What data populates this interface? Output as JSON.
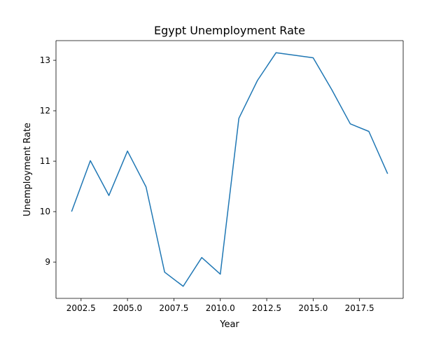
{
  "chart_data": {
    "type": "line",
    "title": "Egypt Unemployment Rate",
    "xlabel": "Year",
    "ylabel": "Unemployment Rate",
    "xlim": [
      2001.15,
      2019.85
    ],
    "ylim": [
      8.28,
      13.39
    ],
    "xticks": [
      2002.5,
      2005.0,
      2007.5,
      2010.0,
      2012.5,
      2015.0,
      2017.5
    ],
    "xtick_labels": [
      "2002.5",
      "2005.0",
      "2007.5",
      "2010.0",
      "2012.5",
      "2015.0",
      "2017.5"
    ],
    "yticks": [
      9,
      10,
      11,
      12,
      13
    ],
    "ytick_labels": [
      "9",
      "10",
      "11",
      "12",
      "13"
    ],
    "grid": false,
    "series": [
      {
        "color": "#1f77b4",
        "x": [
          2002,
          2003,
          2004,
          2005,
          2006,
          2007,
          2008,
          2009,
          2010,
          2011,
          2012,
          2013,
          2014,
          2015,
          2016,
          2017,
          2018,
          2019
        ],
        "y": [
          10.01,
          11.01,
          10.32,
          11.2,
          10.49,
          8.8,
          8.52,
          9.09,
          8.76,
          11.85,
          12.6,
          13.15,
          13.1,
          13.05,
          12.42,
          11.74,
          11.59,
          10.76
        ]
      }
    ]
  }
}
